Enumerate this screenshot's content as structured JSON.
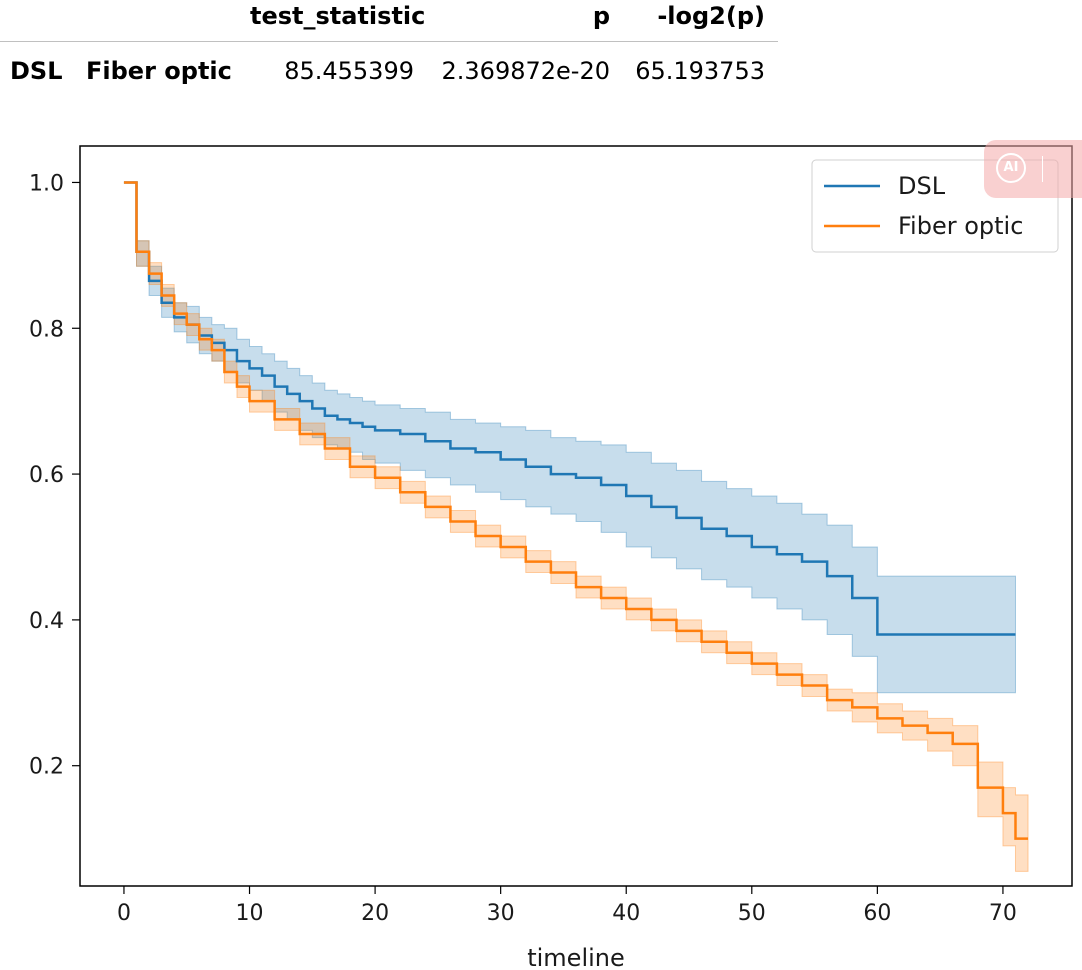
{
  "table": {
    "columns": [
      "test_statistic",
      "p",
      "-log2(p)"
    ],
    "row": {
      "index_1": "DSL",
      "index_2": "Fiber optic",
      "test_statistic": "85.455399",
      "p": "2.369872e-20",
      "neg_log2_p": "65.193753"
    }
  },
  "badge": {
    "label": "AI",
    "icon": "ai-assistant-icon"
  },
  "chart_data": {
    "type": "line",
    "title": "",
    "xlabel": "timeline",
    "ylabel": "",
    "xlim": [
      -3.5,
      75.5
    ],
    "ylim": [
      0.035,
      1.05
    ],
    "xticks": [
      0,
      10,
      20,
      30,
      40,
      50,
      60,
      70
    ],
    "yticks": [
      0.2,
      0.4,
      0.6,
      0.8,
      1.0
    ],
    "ytick_labels": [
      "0.2",
      "0.4",
      "0.6",
      "0.8",
      "1.0"
    ],
    "grid": false,
    "legend_position": "top-right",
    "series": [
      {
        "name": "DSL",
        "color": "#1f77b4",
        "step": true,
        "x": [
          0,
          1,
          2,
          3,
          4,
          5,
          6,
          7,
          8,
          9,
          10,
          11,
          12,
          13,
          14,
          15,
          16,
          17,
          18,
          19,
          20,
          22,
          24,
          26,
          28,
          30,
          32,
          34,
          36,
          38,
          40,
          42,
          44,
          46,
          48,
          50,
          52,
          54,
          56,
          58,
          60,
          71
        ],
        "y": [
          1.0,
          0.905,
          0.865,
          0.835,
          0.815,
          0.805,
          0.79,
          0.78,
          0.77,
          0.755,
          0.745,
          0.735,
          0.72,
          0.71,
          0.7,
          0.69,
          0.68,
          0.675,
          0.67,
          0.665,
          0.66,
          0.655,
          0.645,
          0.635,
          0.63,
          0.62,
          0.61,
          0.6,
          0.595,
          0.585,
          0.57,
          0.555,
          0.54,
          0.525,
          0.515,
          0.5,
          0.49,
          0.48,
          0.46,
          0.43,
          0.38,
          0.38
        ],
        "ci_lower": [
          1.0,
          0.885,
          0.845,
          0.815,
          0.795,
          0.78,
          0.765,
          0.755,
          0.74,
          0.725,
          0.715,
          0.7,
          0.685,
          0.675,
          0.66,
          0.65,
          0.64,
          0.635,
          0.63,
          0.62,
          0.615,
          0.605,
          0.595,
          0.585,
          0.575,
          0.565,
          0.555,
          0.545,
          0.535,
          0.52,
          0.5,
          0.485,
          0.47,
          0.455,
          0.445,
          0.43,
          0.415,
          0.4,
          0.38,
          0.35,
          0.3,
          0.3
        ],
        "ci_upper": [
          1.0,
          0.92,
          0.885,
          0.855,
          0.835,
          0.83,
          0.815,
          0.805,
          0.8,
          0.785,
          0.775,
          0.765,
          0.755,
          0.745,
          0.735,
          0.725,
          0.715,
          0.71,
          0.705,
          0.7,
          0.695,
          0.69,
          0.685,
          0.675,
          0.67,
          0.665,
          0.66,
          0.65,
          0.645,
          0.64,
          0.63,
          0.615,
          0.605,
          0.59,
          0.58,
          0.57,
          0.56,
          0.545,
          0.53,
          0.5,
          0.46,
          0.46
        ]
      },
      {
        "name": "Fiber optic",
        "color": "#ff7f0e",
        "step": true,
        "x": [
          0,
          1,
          2,
          3,
          4,
          5,
          6,
          7,
          8,
          9,
          10,
          12,
          14,
          16,
          18,
          20,
          22,
          24,
          26,
          28,
          30,
          32,
          34,
          36,
          38,
          40,
          42,
          44,
          46,
          48,
          50,
          52,
          54,
          56,
          58,
          60,
          62,
          64,
          66,
          68,
          70,
          71,
          72
        ],
        "y": [
          1.0,
          0.905,
          0.875,
          0.845,
          0.82,
          0.805,
          0.785,
          0.77,
          0.74,
          0.72,
          0.7,
          0.675,
          0.655,
          0.635,
          0.61,
          0.595,
          0.575,
          0.555,
          0.535,
          0.515,
          0.5,
          0.48,
          0.465,
          0.445,
          0.43,
          0.415,
          0.4,
          0.385,
          0.37,
          0.355,
          0.34,
          0.325,
          0.31,
          0.29,
          0.28,
          0.265,
          0.255,
          0.245,
          0.23,
          0.17,
          0.135,
          0.1,
          0.1
        ],
        "ci_lower": [
          1.0,
          0.885,
          0.86,
          0.83,
          0.805,
          0.79,
          0.77,
          0.755,
          0.725,
          0.705,
          0.685,
          0.66,
          0.64,
          0.62,
          0.595,
          0.58,
          0.56,
          0.54,
          0.52,
          0.5,
          0.485,
          0.465,
          0.45,
          0.43,
          0.415,
          0.4,
          0.385,
          0.37,
          0.355,
          0.34,
          0.325,
          0.31,
          0.295,
          0.275,
          0.26,
          0.245,
          0.235,
          0.22,
          0.2,
          0.13,
          0.09,
          0.055,
          0.055
        ],
        "ci_upper": [
          1.0,
          0.92,
          0.89,
          0.86,
          0.835,
          0.82,
          0.8,
          0.785,
          0.755,
          0.735,
          0.715,
          0.69,
          0.67,
          0.65,
          0.625,
          0.61,
          0.59,
          0.57,
          0.55,
          0.53,
          0.515,
          0.495,
          0.48,
          0.46,
          0.445,
          0.43,
          0.415,
          0.4,
          0.385,
          0.37,
          0.355,
          0.34,
          0.325,
          0.305,
          0.3,
          0.285,
          0.275,
          0.265,
          0.255,
          0.205,
          0.17,
          0.16,
          0.16
        ]
      }
    ]
  }
}
